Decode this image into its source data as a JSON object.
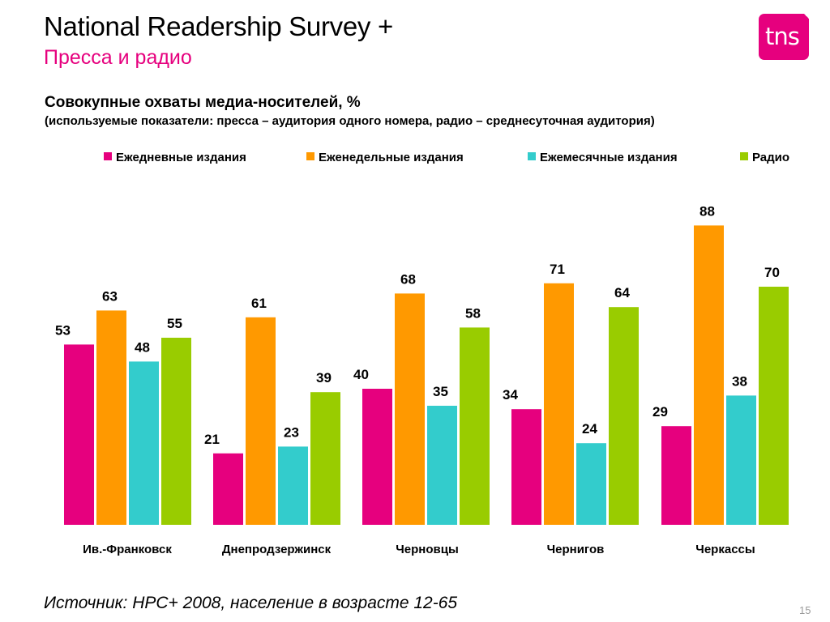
{
  "header": {
    "title": "National Readership Survey +",
    "subtitle": "Пресса и радио",
    "logo_text": "tns"
  },
  "colors": {
    "accent": "#e6007e",
    "series": [
      "#e6007e",
      "#ff9900",
      "#33cccc",
      "#99cc00"
    ]
  },
  "chart_data": {
    "type": "bar",
    "title": "Совокупные охваты медиа-носителей, %",
    "subtitle": "(используемые показатели: пресса – аудитория одного номера, радио – среднесуточная аудитория)",
    "categories": [
      "Ив.-Франковск",
      "Днепродзержинск",
      "Черновцы",
      "Чернигов",
      "Черкассы"
    ],
    "series": [
      {
        "name": "Ежедневные издания",
        "values": [
          53,
          21,
          40,
          34,
          29
        ]
      },
      {
        "name": "Еженедельные издания",
        "values": [
          63,
          61,
          68,
          71,
          88
        ]
      },
      {
        "name": "Ежемесячные издания",
        "values": [
          48,
          23,
          35,
          24,
          38
        ]
      },
      {
        "name": "Радио",
        "values": [
          55,
          39,
          58,
          64,
          70
        ]
      }
    ],
    "ylim": [
      0,
      100
    ],
    "legend_position": "top",
    "grid": false,
    "data_labels": true
  },
  "footer": {
    "source": "Источник: НРС+ 2008, население в возрасте 12-65",
    "page_number": "15"
  }
}
